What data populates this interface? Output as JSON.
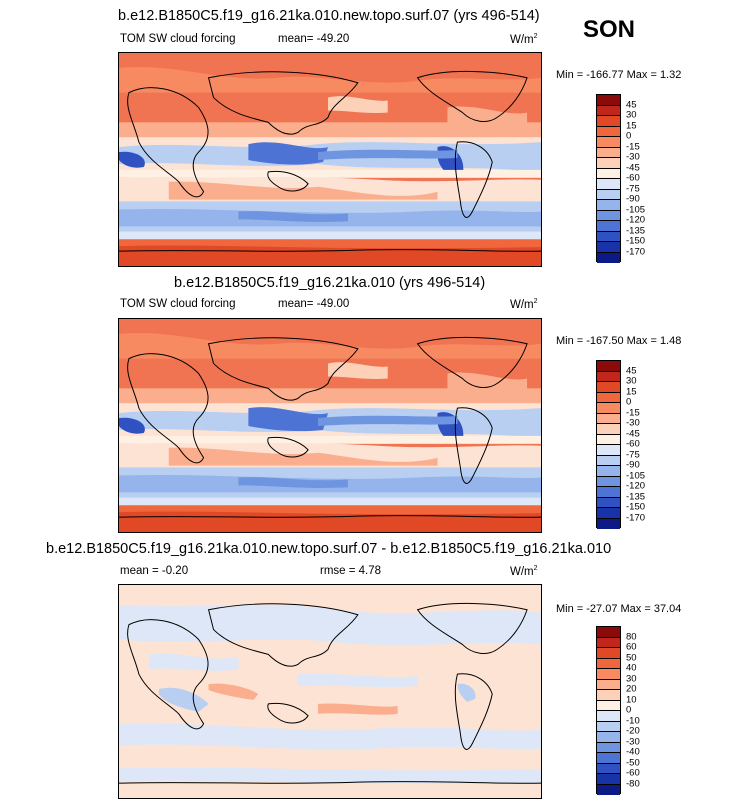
{
  "season": "SON",
  "panels": [
    {
      "title": "b.e12.B1850C5.f19_g16.21ka.010.new.topo.surf.07 (yrs 496-514)",
      "variable": "TOM SW cloud forcing",
      "stats": "mean= -49.20",
      "units": "W/m",
      "units_sup": "2",
      "minmax": "Min = -166.77 Max =   1.32",
      "colorbar_labels": [
        "45",
        "30",
        "15",
        "0",
        "-15",
        "-30",
        "-45",
        "-60",
        "-75",
        "-90",
        "-105",
        "-120",
        "-135",
        "-150",
        "-170"
      ],
      "colors": [
        "#8b0a0a",
        "#c1261a",
        "#e04826",
        "#f0673d",
        "#f78a60",
        "#fbae8d",
        "#fdd0b8",
        "#fff0e4",
        "#dde7f7",
        "#b8cff2",
        "#94b4eb",
        "#6f95e0",
        "#4d73d4",
        "#2f51c2",
        "#1832a8",
        "#0c1a86"
      ]
    },
    {
      "title": "b.e12.B1850C5.f19_g16.21ka.010 (yrs 496-514)",
      "variable": "TOM SW cloud forcing",
      "stats": "mean= -49.00",
      "units": "W/m",
      "units_sup": "2",
      "minmax": "Min = -167.50 Max =   1.48",
      "colorbar_labels": [
        "45",
        "30",
        "15",
        "0",
        "-15",
        "-30",
        "-45",
        "-60",
        "-75",
        "-90",
        "-105",
        "-120",
        "-135",
        "-150",
        "-170"
      ],
      "colors": [
        "#8b0a0a",
        "#c1261a",
        "#e04826",
        "#f0673d",
        "#f78a60",
        "#fbae8d",
        "#fdd0b8",
        "#fff0e4",
        "#dde7f7",
        "#b8cff2",
        "#94b4eb",
        "#6f95e0",
        "#4d73d4",
        "#2f51c2",
        "#1832a8",
        "#0c1a86"
      ]
    },
    {
      "title": "b.e12.B1850C5.f19_g16.21ka.010.new.topo.surf.07 - b.e12.B1850C5.f19_g16.21ka.010",
      "stats": "mean =  -0.20",
      "rmse": "rmse =   4.78",
      "units": "W/m",
      "units_sup": "2",
      "minmax": "Min = -27.07 Max = 37.04",
      "colorbar_labels": [
        "80",
        "60",
        "50",
        "40",
        "30",
        "20",
        "10",
        "0",
        "-10",
        "-20",
        "-30",
        "-40",
        "-50",
        "-60",
        "-80"
      ],
      "colors": [
        "#8b0a0a",
        "#c1261a",
        "#e04826",
        "#f0673d",
        "#f78a60",
        "#fbae8d",
        "#fdd0b8",
        "#fff0e4",
        "#dde7f7",
        "#b8cff2",
        "#94b4eb",
        "#6f95e0",
        "#4d73d4",
        "#2f51c2",
        "#1832a8",
        "#0c1a86"
      ]
    }
  ]
}
